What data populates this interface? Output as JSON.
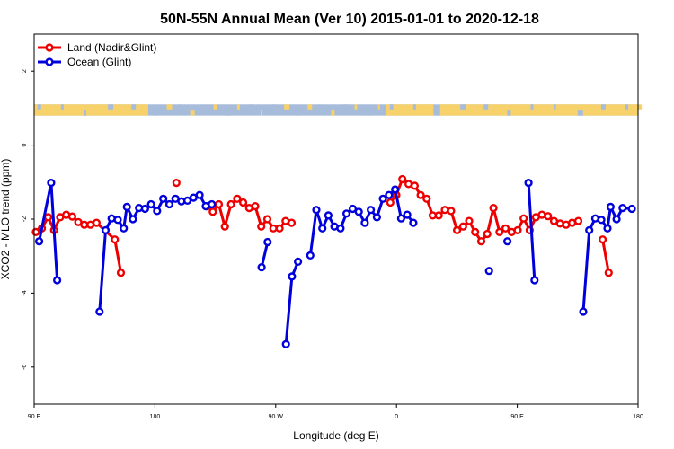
{
  "chart_data": {
    "type": "line",
    "title": "50N-55N Annual Mean (Ver 10)   2015-01-01 to 2020-12-18",
    "xlabel": "Longitude (deg E)",
    "ylabel": "XCO2 - MLO trend (ppm)",
    "xlim": [
      90,
      450
    ],
    "ylim": [
      -7,
      3
    ],
    "x_ticks": [
      {
        "value": 90,
        "label": "90 E"
      },
      {
        "value": 162,
        "label": "180"
      },
      {
        "value": 234,
        "label": "90 W"
      },
      {
        "value": 306,
        "label": "0"
      },
      {
        "value": 378,
        "label": "90 E"
      },
      {
        "value": 450,
        "label": "180"
      }
    ],
    "y_ticks": [
      {
        "value": -6,
        "label": "-6"
      },
      {
        "value": -4,
        "label": "-4"
      },
      {
        "value": -2,
        "label": "-2"
      },
      {
        "value": 0,
        "label": "0"
      },
      {
        "value": 2,
        "label": "2"
      }
    ],
    "grid": false,
    "legend_position": "top-left",
    "land_mask": {
      "ymin": 0.8,
      "ymax": 1.1,
      "land_color": "#f7d26b",
      "ocean_color": "#a7bcdb"
    },
    "series": [
      {
        "name": "Land (Nadir&Glint)",
        "color": "#ee0000",
        "segments": [
          [
            [
              91,
              -2.35
            ],
            [
              94.6,
              -2.25
            ],
            [
              98.3,
              -1.95
            ],
            [
              101.9,
              -2.3
            ],
            [
              105.5,
              -1.95
            ],
            [
              109.1,
              -1.88
            ],
            [
              112.7,
              -1.93
            ],
            [
              116.3,
              -2.08
            ],
            [
              119.9,
              -2.15
            ],
            [
              123.6,
              -2.15
            ],
            [
              127.2,
              -2.1
            ],
            [
              138.1,
              -2.55
            ],
            [
              141.7,
              -3.45
            ]
          ],
          [
            [
              174.8,
              -1.02
            ]
          ],
          [
            [
              192.9,
              -1.65
            ],
            [
              196.5,
              -1.8
            ],
            [
              200.1,
              -1.6
            ],
            [
              203.7,
              -2.2
            ],
            [
              207.4,
              -1.6
            ],
            [
              211,
              -1.45
            ],
            [
              214.6,
              -1.55
            ],
            [
              218.2,
              -1.7
            ],
            [
              221.8,
              -1.65
            ],
            [
              225.4,
              -2.2
            ],
            [
              229,
              -2.0
            ],
            [
              232.6,
              -2.25
            ],
            [
              236.3,
              -2.25
            ],
            [
              239.9,
              -2.05
            ],
            [
              243.5,
              -2.1
            ]
          ],
          [
            [
              302.3,
              -1.55
            ],
            [
              305.9,
              -1.35
            ],
            [
              309.5,
              -0.92
            ],
            [
              313.2,
              -1.05
            ],
            [
              316.8,
              -1.1
            ],
            [
              320.4,
              -1.35
            ],
            [
              324,
              -1.45
            ],
            [
              327.6,
              -1.9
            ],
            [
              331.2,
              -1.9
            ],
            [
              334.8,
              -1.75
            ],
            [
              338.5,
              -1.78
            ],
            [
              342.1,
              -2.3
            ],
            [
              345.7,
              -2.2
            ],
            [
              349.3,
              -2.05
            ],
            [
              352.9,
              -2.35
            ],
            [
              356.5,
              -2.6
            ],
            [
              360.1,
              -2.4
            ],
            [
              363.8,
              -1.7
            ],
            [
              367.4,
              -2.35
            ],
            [
              371,
              -2.25
            ],
            [
              374.6,
              -2.35
            ],
            [
              378.2,
              -2.3
            ],
            [
              381.8,
              -1.98
            ],
            [
              385.4,
              -2.3
            ],
            [
              389.1,
              -1.95
            ],
            [
              392.7,
              -1.88
            ],
            [
              396.3,
              -1.92
            ],
            [
              399.9,
              -2.05
            ],
            [
              403.5,
              -2.12
            ],
            [
              407.1,
              -2.15
            ],
            [
              410.7,
              -2.1
            ],
            [
              414.4,
              -2.05
            ]
          ],
          [
            [
              428.9,
              -2.55
            ],
            [
              432.5,
              -3.45
            ]
          ]
        ]
      },
      {
        "name": "Ocean (Glint)",
        "color": "#0000dd",
        "segments": [
          [
            [
              93,
              -2.6
            ],
            [
              100.1,
              -1.02
            ],
            [
              103.7,
              -3.65
            ]
          ],
          [
            [
              129,
              -4.5
            ],
            [
              132.6,
              -2.3
            ],
            [
              136.2,
              -1.98
            ],
            [
              139.8,
              -2.02
            ],
            [
              143.4,
              -2.25
            ],
            [
              145.3,
              -1.67
            ],
            [
              148.9,
              -2.0
            ],
            [
              152.5,
              -1.7
            ],
            [
              156.1,
              -1.72
            ],
            [
              159.7,
              -1.6
            ],
            [
              163.3,
              -1.78
            ],
            [
              167,
              -1.45
            ],
            [
              170.6,
              -1.6
            ],
            [
              174.2,
              -1.45
            ],
            [
              177.8,
              -1.52
            ],
            [
              181.4,
              -1.5
            ],
            [
              185,
              -1.42
            ],
            [
              188.6,
              -1.35
            ],
            [
              192.3,
              -1.65
            ],
            [
              195.9,
              -1.6
            ]
          ],
          [
            [
              225.6,
              -3.3
            ],
            [
              229.2,
              -2.62
            ]
          ],
          [
            [
              240.1,
              -5.38
            ],
            [
              243.7,
              -3.55
            ],
            [
              247.3,
              -3.15
            ]
          ],
          [
            [
              254.6,
              -2.98
            ],
            [
              258.2,
              -1.75
            ],
            [
              261.8,
              -2.25
            ],
            [
              265.4,
              -1.9
            ],
            [
              269,
              -2.2
            ],
            [
              272.6,
              -2.25
            ],
            [
              276.2,
              -1.85
            ],
            [
              279.9,
              -1.72
            ],
            [
              283.5,
              -1.8
            ],
            [
              287.1,
              -2.1
            ],
            [
              290.7,
              -1.75
            ],
            [
              294.3,
              -1.95
            ],
            [
              297.9,
              -1.45
            ],
            [
              301.5,
              -1.35
            ],
            [
              305.2,
              -1.2
            ],
            [
              308.8,
              -1.98
            ],
            [
              312.4,
              -1.88
            ],
            [
              316,
              -2.1
            ]
          ],
          [
            [
              361.2,
              -3.4
            ]
          ],
          [
            [
              372.1,
              -2.6
            ]
          ],
          [
            [
              384.7,
              -1.02
            ],
            [
              388.3,
              -3.65
            ]
          ],
          [
            [
              417.3,
              -4.5
            ],
            [
              420.9,
              -2.3
            ],
            [
              424.5,
              -1.98
            ],
            [
              428.1,
              -2.02
            ],
            [
              431.8,
              -2.25
            ],
            [
              433.6,
              -1.67
            ],
            [
              437.2,
              -2.0
            ],
            [
              440.8,
              -1.7
            ],
            [
              446.3,
              -1.72
            ]
          ]
        ]
      }
    ]
  }
}
